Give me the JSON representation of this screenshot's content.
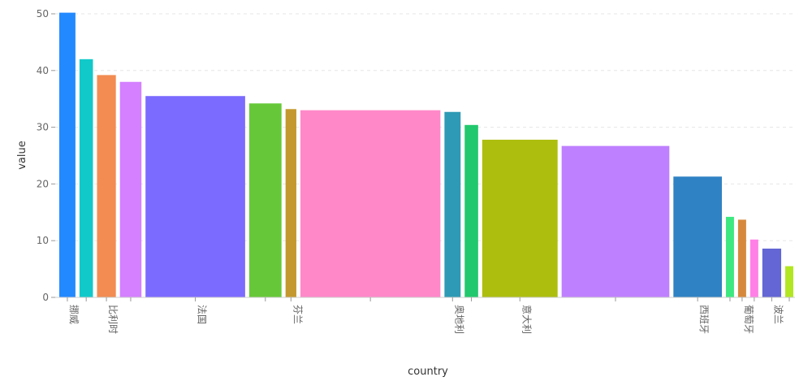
{
  "chart_data": {
    "type": "bar",
    "xlabel": "country",
    "ylabel": "value",
    "ylim": [
      0,
      50
    ],
    "yticks": [
      0,
      10,
      20,
      30,
      40,
      50
    ],
    "grid": "horizontal dashed",
    "categories": [
      "挪威",
      "",
      "比利时",
      "",
      "法国",
      "",
      "芬兰",
      "",
      "奥地利",
      "",
      "意大利",
      "",
      "西班牙",
      "",
      "葡萄牙",
      "",
      "波兰",
      ""
    ],
    "values": [
      50.2,
      42.0,
      39.2,
      38.0,
      35.5,
      34.2,
      33.2,
      33.0,
      32.7,
      30.4,
      27.8,
      26.7,
      21.3,
      14.2,
      13.7,
      10.2,
      8.6,
      5.5
    ],
    "widths": [
      0.6,
      0.5,
      0.7,
      0.8,
      3.7,
      1.2,
      0.4,
      5.2,
      0.6,
      0.5,
      2.8,
      4.0,
      1.8,
      0.3,
      0.3,
      0.3,
      0.7,
      0.3
    ],
    "colors": [
      "#2389ff",
      "#12c9c9",
      "#f28c52",
      "#d480ff",
      "#7c6bff",
      "#66c838",
      "#c4982e",
      "#ff88c9",
      "#2e9ab5",
      "#22c86e",
      "#adbe0e",
      "#bf80ff",
      "#2f82c4",
      "#3de880",
      "#d6893c",
      "#ff80e6",
      "#6366d4",
      "#b3e622"
    ]
  }
}
